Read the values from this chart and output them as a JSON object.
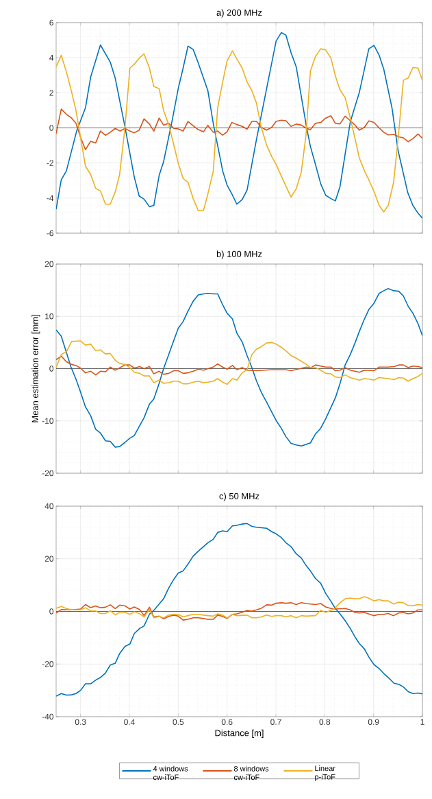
{
  "chart_data": [
    {
      "type": "line",
      "title": "a) 200 MHz",
      "xlim": [
        0.25,
        1
      ],
      "ylim": [
        -6,
        6
      ],
      "xticks": [
        0.3,
        0.4,
        0.5,
        0.6,
        0.7,
        0.8,
        0.9,
        1
      ],
      "yticks": [
        -6,
        -4,
        -2,
        0,
        2,
        4,
        6
      ],
      "tick_labels": "y",
      "grid": true,
      "legend": false,
      "marker": "none",
      "ref_lines": [
        {
          "axis": "y",
          "value": 0,
          "color": "#404040"
        }
      ],
      "series": [
        {
          "color": "#0072bd",
          "x": [
            0.25,
            0.2605,
            0.271,
            0.292,
            0.31,
            0.3207,
            0.3407,
            0.3608,
            0.371,
            0.391,
            0.41,
            0.42,
            0.43,
            0.441,
            0.45,
            0.461,
            0.47,
            0.488,
            0.5,
            0.51,
            0.52,
            0.5306,
            0.541,
            0.5607,
            0.5717,
            0.591,
            0.6,
            0.6097,
            0.62,
            0.631,
            0.641,
            0.66,
            0.681,
            0.7004,
            0.711,
            0.7205,
            0.731,
            0.7416,
            0.7627,
            0.7706,
            0.781,
            0.7917,
            0.802,
            0.8128,
            0.8217,
            0.8312,
            0.8418,
            0.8523,
            0.8708,
            0.8903,
            0.9008,
            0.9114,
            0.9209,
            0.9377,
            0.95,
            0.97,
            0.9805,
            0.991,
            1.0
          ],
          "values": [
            -4.64,
            -2.96,
            -2.45,
            -0.18,
            1.14,
            2.9,
            4.73,
            3.75,
            2.83,
            0.04,
            -2.8,
            -3.88,
            -4.06,
            -4.49,
            -4.42,
            -2.7,
            -1.93,
            0.48,
            2.24,
            3.41,
            4.66,
            4.47,
            3.7,
            2.12,
            0.26,
            -2.45,
            -3.26,
            -3.76,
            -4.35,
            -4.08,
            -3.54,
            -0.69,
            2.24,
            4.95,
            5.43,
            5.29,
            4.29,
            3.48,
            0.04,
            -1.05,
            -2.08,
            -3.18,
            -3.84,
            -4.03,
            -4.16,
            -3.35,
            -1.49,
            0.34,
            2.02,
            4.51,
            4.7,
            4.14,
            3.34,
            1.14,
            -1.27,
            -3.69,
            -4.42,
            -4.86,
            -5.15
          ]
        },
        {
          "color": "#d95319",
          "x": [
            0.25,
            0.2605,
            0.271,
            0.2817,
            0.2906,
            0.3,
            0.31,
            0.3207,
            0.331,
            0.3407,
            0.351,
            0.3608,
            0.371,
            0.381,
            0.391,
            0.401,
            0.41,
            0.42,
            0.43,
            0.441,
            0.45,
            0.461,
            0.47,
            0.4805,
            0.491,
            0.5,
            0.51,
            0.52,
            0.5306,
            0.541,
            0.5517,
            0.5607,
            0.5717,
            0.5807,
            0.591,
            0.6,
            0.6097,
            0.62,
            0.631,
            0.641,
            0.6508,
            0.66,
            0.67,
            0.681,
            0.6915,
            0.7004,
            0.711,
            0.7205,
            0.731,
            0.7416,
            0.752,
            0.7627,
            0.7706,
            0.781,
            0.7917,
            0.802,
            0.8128,
            0.8217,
            0.8312,
            0.8418,
            0.8523,
            0.862,
            0.8708,
            0.8813,
            0.8903,
            0.9008,
            0.9114,
            0.9209,
            0.93,
            0.942,
            0.9515,
            0.961,
            0.971,
            0.9805,
            0.991,
            1.0
          ],
          "values": [
            -0.32,
            1.07,
            0.78,
            0.56,
            0.26,
            -0.54,
            -1.24,
            -0.76,
            -0.86,
            -0.18,
            -0.42,
            -0.25,
            -0.03,
            -0.18,
            -0.03,
            -0.18,
            -0.28,
            -0.13,
            0.51,
            0.22,
            -0.18,
            0.56,
            0.16,
            0.26,
            -0.03,
            -0.06,
            -0.18,
            0.37,
            0.12,
            -0.1,
            -0.22,
            0.15,
            -0.25,
            -0.18,
            -0.42,
            -0.22,
            0.31,
            0.19,
            0.09,
            -0.07,
            0.37,
            0.38,
            0.04,
            -0.13,
            0.04,
            0.37,
            0.44,
            0.41,
            0.09,
            0.22,
            0.16,
            -0.03,
            -0.1,
            0.26,
            0.31,
            0.56,
            0.69,
            0.26,
            0.23,
            0.67,
            0.41,
            0.16,
            -0.13,
            0.04,
            0.4,
            0.31,
            0.0,
            -0.25,
            -0.4,
            -0.37,
            -0.51,
            -0.57,
            -0.79,
            -0.61,
            -0.35,
            -0.59
          ]
        },
        {
          "color": "#edb120",
          "x": [
            0.25,
            0.2605,
            0.271,
            0.28,
            0.2906,
            0.3,
            0.31,
            0.3207,
            0.331,
            0.3407,
            0.351,
            0.3608,
            0.371,
            0.38,
            0.391,
            0.401,
            0.41,
            0.421,
            0.43,
            0.441,
            0.45,
            0.461,
            0.47,
            0.4805,
            0.491,
            0.5,
            0.51,
            0.52,
            0.5306,
            0.541,
            0.5517,
            0.5607,
            0.5717,
            0.5807,
            0.591,
            0.6,
            0.611,
            0.62,
            0.631,
            0.641,
            0.6508,
            0.66,
            0.67,
            0.681,
            0.6915,
            0.7004,
            0.711,
            0.7205,
            0.731,
            0.7416,
            0.752,
            0.7617,
            0.7706,
            0.781,
            0.7917,
            0.802,
            0.8128,
            0.8217,
            0.8312,
            0.8418,
            0.8523,
            0.862,
            0.8708,
            0.8813,
            0.8903,
            0.9008,
            0.9114,
            0.9209,
            0.93,
            0.941,
            0.951,
            0.961,
            0.971,
            0.9805,
            0.991,
            1.0
          ],
          "values": [
            3.48,
            4.14,
            3.19,
            2.24,
            1.0,
            -0.54,
            -2.18,
            -2.66,
            -3.44,
            -3.59,
            -4.35,
            -4.35,
            -3.65,
            -2.66,
            0.04,
            3.41,
            3.63,
            4.0,
            4.22,
            3.41,
            2.36,
            2.24,
            1.0,
            0.19,
            -0.98,
            -2.01,
            -2.88,
            -3.1,
            -4.03,
            -4.71,
            -4.71,
            -3.76,
            -2.47,
            1.14,
            2.61,
            3.82,
            4.39,
            3.92,
            3.41,
            2.61,
            2.12,
            1.43,
            0.04,
            -0.98,
            -1.64,
            -2.08,
            -2.74,
            -3.32,
            -3.94,
            -3.47,
            -2.52,
            -0.4,
            3.24,
            4.07,
            4.51,
            4.44,
            3.97,
            2.97,
            2.17,
            1.73,
            0.56,
            -0.61,
            -1.71,
            -2.45,
            -2.96,
            -3.62,
            -4.42,
            -4.79,
            -4.42,
            -3.1,
            -0.4,
            2.71,
            2.85,
            3.44,
            3.41,
            2.71
          ]
        }
      ]
    },
    {
      "type": "line",
      "title": "b) 100 MHz",
      "ylabel": "Mean estimation error [mm]",
      "xlim": [
        0.25,
        1
      ],
      "ylim": [
        -20,
        20
      ],
      "xticks": [
        0.3,
        0.4,
        0.5,
        0.6,
        0.7,
        0.8,
        0.9,
        1
      ],
      "yticks": [
        -20,
        -10,
        0,
        10,
        20
      ],
      "tick_labels": "y",
      "grid": true,
      "legend": false,
      "marker": "none",
      "ref_lines": [
        {
          "axis": "y",
          "value": 0,
          "color": "#404040"
        }
      ],
      "series": [
        {
          "color": "#0072bd",
          "x": [
            0.25,
            0.2605,
            0.271,
            0.28,
            0.2906,
            0.3,
            0.31,
            0.3207,
            0.331,
            0.3407,
            0.351,
            0.3608,
            0.371,
            0.38,
            0.391,
            0.401,
            0.41,
            0.421,
            0.43,
            0.441,
            0.45,
            0.461,
            0.47,
            0.4805,
            0.491,
            0.5,
            0.51,
            0.52,
            0.5306,
            0.541,
            0.5517,
            0.5607,
            0.5717,
            0.5807,
            0.591,
            0.6,
            0.611,
            0.62,
            0.631,
            0.641,
            0.6508,
            0.66,
            0.67,
            0.681,
            0.6915,
            0.7004,
            0.711,
            0.7205,
            0.731,
            0.7416,
            0.752,
            0.7617,
            0.7706,
            0.781,
            0.7917,
            0.802,
            0.8128,
            0.8217,
            0.8312,
            0.8418,
            0.8523,
            0.862,
            0.8708,
            0.8813,
            0.8903,
            0.9008,
            0.9114,
            0.9209,
            0.93,
            0.941,
            0.9515,
            0.961,
            0.971,
            0.9805,
            0.991,
            1.0
          ],
          "values": [
            7.4,
            6.2,
            3.1,
            0.4,
            -2.0,
            -4.5,
            -7.3,
            -9.0,
            -11.6,
            -12.3,
            -13.8,
            -13.9,
            -15.0,
            -14.9,
            -14.1,
            -13.3,
            -12.8,
            -10.9,
            -9.4,
            -6.8,
            -5.8,
            -2.8,
            0.0,
            2.7,
            5.4,
            7.7,
            9.0,
            11.0,
            12.9,
            14.1,
            14.3,
            14.4,
            14.3,
            14.3,
            12.2,
            10.6,
            9.5,
            6.8,
            5.1,
            2.5,
            0.2,
            -2.3,
            -4.5,
            -6.4,
            -8.3,
            -9.9,
            -11.4,
            -13.0,
            -14.3,
            -14.6,
            -14.8,
            -14.5,
            -14.2,
            -12.5,
            -11.4,
            -9.6,
            -7.4,
            -5.6,
            -2.9,
            0.7,
            2.7,
            4.9,
            7.1,
            9.5,
            11.3,
            12.5,
            14.4,
            14.9,
            15.3,
            14.9,
            14.8,
            13.9,
            11.9,
            10.6,
            8.6,
            6.3
          ]
        },
        {
          "color": "#d95319",
          "x": [
            0.25,
            0.2605,
            0.271,
            0.2817,
            0.2906,
            0.3,
            0.31,
            0.3207,
            0.331,
            0.3407,
            0.351,
            0.3608,
            0.371,
            0.391,
            0.401,
            0.41,
            0.421,
            0.43,
            0.441,
            0.45,
            0.461,
            0.47,
            0.4805,
            0.491,
            0.5,
            0.51,
            0.52,
            0.5306,
            0.541,
            0.5517,
            0.5607,
            0.5717,
            0.5807,
            0.591,
            0.6,
            0.611,
            0.62,
            0.631,
            0.641,
            0.66,
            0.6915,
            0.7205,
            0.731,
            0.7627,
            0.7706,
            0.781,
            0.802,
            0.8128,
            0.8217,
            0.8312,
            0.8418,
            0.8523,
            0.8708,
            0.8813,
            0.9008,
            0.9114,
            0.93,
            0.942,
            0.9515,
            0.961,
            0.971,
            0.9805,
            0.991,
            1.0
          ],
          "values": [
            1.7,
            2.4,
            1.3,
            0.8,
            0.6,
            0.1,
            -0.8,
            -0.5,
            -1.2,
            -0.5,
            -0.6,
            0.3,
            -0.3,
            0.7,
            0.7,
            0.1,
            0.4,
            0.0,
            0.4,
            -1.0,
            -0.5,
            -1.1,
            -0.9,
            -0.4,
            -0.4,
            -0.9,
            -0.8,
            -0.5,
            -0.1,
            -0.3,
            0.0,
            0.3,
            0.9,
            0.3,
            -0.1,
            0.6,
            -0.2,
            0.2,
            -0.3,
            -0.4,
            -0.2,
            -0.2,
            -0.4,
            0.3,
            0.1,
            0.7,
            0.3,
            0.3,
            -0.4,
            -0.3,
            0.2,
            -0.3,
            -0.7,
            -0.3,
            -0.4,
            0.3,
            0.3,
            0.4,
            0.7,
            0.7,
            0.2,
            0.5,
            0.4,
            0.2
          ]
        },
        {
          "color": "#edb120",
          "x": [
            0.25,
            0.2605,
            0.271,
            0.2817,
            0.3,
            0.31,
            0.3207,
            0.331,
            0.3407,
            0.351,
            0.3608,
            0.371,
            0.38,
            0.391,
            0.401,
            0.41,
            0.421,
            0.43,
            0.441,
            0.45,
            0.461,
            0.47,
            0.4805,
            0.491,
            0.5,
            0.51,
            0.52,
            0.5306,
            0.541,
            0.5517,
            0.5607,
            0.5717,
            0.5807,
            0.591,
            0.6,
            0.611,
            0.62,
            0.631,
            0.641,
            0.6508,
            0.66,
            0.67,
            0.681,
            0.6915,
            0.7004,
            0.711,
            0.7205,
            0.731,
            0.7416,
            0.7627,
            0.7706,
            0.781,
            0.7917,
            0.802,
            0.8128,
            0.8217,
            0.8312,
            0.8418,
            0.8523,
            0.8708,
            0.8813,
            0.8903,
            0.9008,
            0.9114,
            0.93,
            0.942,
            0.9515,
            0.961,
            0.971,
            0.9805,
            0.991,
            1.0
          ],
          "values": [
            0.2,
            2.7,
            3.2,
            5.2,
            5.3,
            4.5,
            4.7,
            3.4,
            3.6,
            2.8,
            2.9,
            1.6,
            1.0,
            0.8,
            0.2,
            -0.7,
            -0.9,
            -1.4,
            -1.4,
            -2.7,
            -2.2,
            -2.8,
            -2.7,
            -2.4,
            -2.4,
            -2.9,
            -2.9,
            -2.6,
            -2.4,
            -2.7,
            -2.6,
            -2.4,
            -1.9,
            -2.6,
            -3.0,
            -1.9,
            -2.2,
            -0.8,
            -0.2,
            2.7,
            3.7,
            4.2,
            4.9,
            5.0,
            4.7,
            4.1,
            3.4,
            2.5,
            2.0,
            0.8,
            0.2,
            0.2,
            -0.3,
            -0.9,
            -1.0,
            -1.6,
            -1.7,
            -1.2,
            -1.7,
            -2.2,
            -1.9,
            -2.0,
            -2.2,
            -1.7,
            -1.9,
            -2.1,
            -1.7,
            -1.8,
            -2.4,
            -1.9,
            -1.5,
            -0.9
          ]
        }
      ]
    },
    {
      "type": "line",
      "title": "c) 50 MHz",
      "xlabel": "Distance [m]",
      "xlim": [
        0.25,
        1
      ],
      "ylim": [
        -40,
        40
      ],
      "xticks": [
        0.3,
        0.4,
        0.5,
        0.6,
        0.7,
        0.8,
        0.9,
        1
      ],
      "yticks": [
        -40,
        -20,
        0,
        20,
        40
      ],
      "grid": true,
      "legend": "bottom",
      "marker": "none",
      "ref_lines": [
        {
          "axis": "y",
          "value": 0,
          "color": "#404040"
        }
      ],
      "series": [
        {
          "name": "4 windows cw-iToF",
          "color": "#0072bd",
          "x": [
            0.25,
            0.2605,
            0.271,
            0.2817,
            0.2906,
            0.3,
            0.31,
            0.3207,
            0.331,
            0.3407,
            0.351,
            0.3608,
            0.371,
            0.38,
            0.391,
            0.401,
            0.41,
            0.421,
            0.43,
            0.441,
            0.45,
            0.461,
            0.47,
            0.4805,
            0.491,
            0.5,
            0.51,
            0.52,
            0.5306,
            0.541,
            0.5517,
            0.5607,
            0.5717,
            0.5807,
            0.591,
            0.6,
            0.611,
            0.62,
            0.631,
            0.641,
            0.6508,
            0.66,
            0.681,
            0.6915,
            0.7004,
            0.711,
            0.7205,
            0.731,
            0.7416,
            0.752,
            0.7617,
            0.7706,
            0.781,
            0.7917,
            0.802,
            0.8128,
            0.8217,
            0.8312,
            0.8418,
            0.8523,
            0.862,
            0.8708,
            0.8813,
            0.8903,
            0.9008,
            0.9114,
            0.9209,
            0.93,
            0.942,
            0.9515,
            0.961,
            0.971,
            0.9805,
            0.991,
            1.0
          ],
          "values": [
            -32.2,
            -31.2,
            -31.8,
            -31.7,
            -31.2,
            -30.0,
            -27.5,
            -27.5,
            -26.1,
            -25.1,
            -23.4,
            -20.4,
            -19.7,
            -16.0,
            -13.3,
            -12.4,
            -8.4,
            -6.5,
            -5.5,
            -1.1,
            0.4,
            2.8,
            4.8,
            8.9,
            12.2,
            14.6,
            15.4,
            18.0,
            21.0,
            22.9,
            24.6,
            26.1,
            27.4,
            30.0,
            30.6,
            30.3,
            32.5,
            32.7,
            33.2,
            33.4,
            32.3,
            32.0,
            31.6,
            30.3,
            29.5,
            28.1,
            26.1,
            24.6,
            21.9,
            20.3,
            17.5,
            15.4,
            12.5,
            10.7,
            6.8,
            3.8,
            1.1,
            -0.9,
            -3.5,
            -6.5,
            -9.7,
            -12.2,
            -14.3,
            -17.3,
            -20.2,
            -21.7,
            -23.6,
            -25.1,
            -27.3,
            -27.7,
            -28.7,
            -30.5,
            -31.2,
            -31.0,
            -31.3
          ]
        },
        {
          "name": "8 windows cw-iToF",
          "color": "#d95319",
          "x": [
            0.25,
            0.2605,
            0.2817,
            0.3,
            0.31,
            0.3207,
            0.331,
            0.3407,
            0.351,
            0.3608,
            0.371,
            0.38,
            0.391,
            0.401,
            0.41,
            0.421,
            0.43,
            0.441,
            0.45,
            0.461,
            0.47,
            0.4805,
            0.491,
            0.5,
            0.51,
            0.52,
            0.5306,
            0.541,
            0.5517,
            0.5607,
            0.5717,
            0.5807,
            0.591,
            0.6,
            0.611,
            0.62,
            0.631,
            0.641,
            0.6508,
            0.66,
            0.67,
            0.681,
            0.6915,
            0.7004,
            0.711,
            0.7205,
            0.731,
            0.7416,
            0.752,
            0.7617,
            0.781,
            0.7917,
            0.802,
            0.8128,
            0.8217,
            0.8418,
            0.8523,
            0.862,
            0.8708,
            0.8813,
            0.9008,
            0.9114,
            0.9209,
            0.93,
            0.941,
            0.9515,
            0.961,
            0.971,
            0.9805,
            0.991,
            1.0
          ],
          "values": [
            -0.6,
            0.7,
            0.6,
            0.9,
            2.6,
            1.4,
            2.1,
            1.4,
            1.6,
            2.5,
            1.1,
            2.4,
            2.1,
            0.9,
            1.7,
            0.7,
            -1.6,
            1.6,
            -2.1,
            -1.8,
            -2.8,
            -1.9,
            -1.4,
            -1.8,
            -3.3,
            -3.0,
            -2.4,
            -2.4,
            -2.7,
            -3.0,
            -3.0,
            -1.4,
            -1.9,
            -2.7,
            -1.1,
            -0.9,
            -0.3,
            0.4,
            0.1,
            0.6,
            1.2,
            2.5,
            2.4,
            3.1,
            3.3,
            3.1,
            3.3,
            2.6,
            3.3,
            3.0,
            2.6,
            3.0,
            1.7,
            1.1,
            0.9,
            1.1,
            0.6,
            -0.4,
            -0.6,
            -0.4,
            -1.6,
            -1.1,
            -1.1,
            -0.8,
            -1.6,
            -0.6,
            -0.4,
            -0.9,
            -0.6,
            0.6,
            0.6
          ]
        },
        {
          "name": "Linear p-iToF",
          "color": "#edb120",
          "x": [
            0.25,
            0.2605,
            0.271,
            0.2817,
            0.3,
            0.31,
            0.3207,
            0.331,
            0.3407,
            0.351,
            0.3608,
            0.371,
            0.38,
            0.391,
            0.401,
            0.41,
            0.421,
            0.43,
            0.441,
            0.45,
            0.461,
            0.47,
            0.4805,
            0.491,
            0.5,
            0.51,
            0.52,
            0.5306,
            0.541,
            0.5517,
            0.5607,
            0.5717,
            0.5807,
            0.591,
            0.6,
            0.611,
            0.62,
            0.641,
            0.6508,
            0.66,
            0.67,
            0.681,
            0.6915,
            0.7004,
            0.711,
            0.7205,
            0.731,
            0.7416,
            0.752,
            0.7617,
            0.781,
            0.7917,
            0.802,
            0.8128,
            0.8217,
            0.8312,
            0.8418,
            0.8523,
            0.862,
            0.8708,
            0.8813,
            0.8903,
            0.9008,
            0.9114,
            0.9209,
            0.93,
            0.941,
            0.9515,
            0.961,
            0.971,
            0.9805,
            0.991,
            1.0
          ],
          "values": [
            1.2,
            1.9,
            1.1,
            0.6,
            0.6,
            1.4,
            0.2,
            0.2,
            -0.8,
            -0.8,
            0.2,
            -1.3,
            -0.3,
            -0.3,
            -1.1,
            -0.1,
            -0.9,
            -2.1,
            0.7,
            -2.4,
            -1.9,
            -2.4,
            -1.4,
            -1.1,
            -1.1,
            -2.1,
            -1.6,
            -1.1,
            -1.1,
            -1.4,
            -1.6,
            -1.8,
            -0.9,
            -1.4,
            -2.5,
            -1.1,
            -1.6,
            -1.4,
            -2.4,
            -2.4,
            -2.1,
            -1.4,
            -1.9,
            -1.6,
            -1.6,
            -2.1,
            -1.6,
            -2.4,
            -1.6,
            -1.8,
            -1.6,
            0.4,
            -0.3,
            0.4,
            1.4,
            3.3,
            4.8,
            5.1,
            4.8,
            4.8,
            5.6,
            5.0,
            4.0,
            4.5,
            4.0,
            4.0,
            2.8,
            3.5,
            3.3,
            2.2,
            2.2,
            2.6,
            2.4
          ]
        }
      ]
    }
  ]
}
